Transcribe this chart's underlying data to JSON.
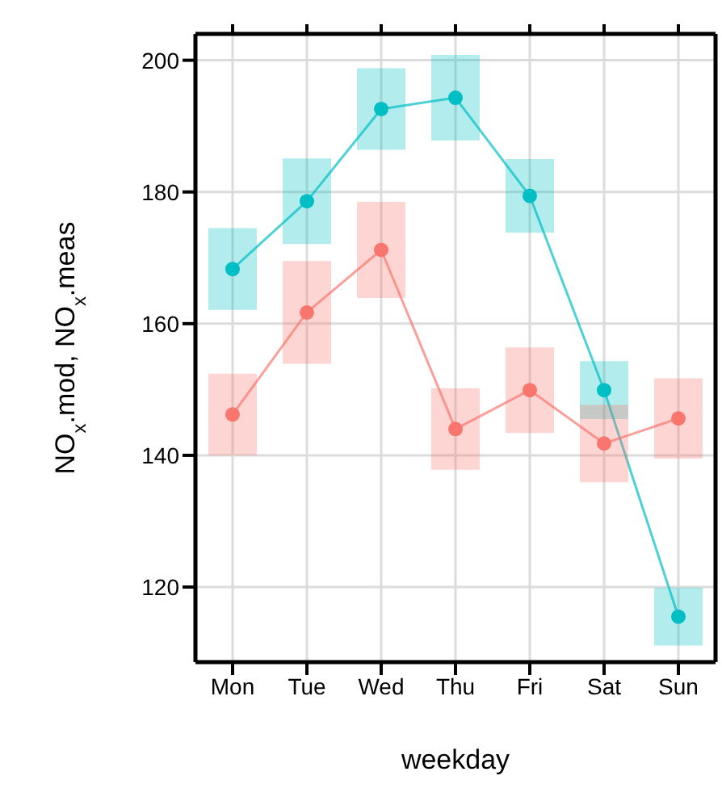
{
  "chart_data": {
    "type": "line",
    "xlabel": "weekday",
    "ylabel": "NO$_{x}$.mod, NO$_{x}$.meas",
    "categories": [
      "Mon",
      "Tue",
      "Wed",
      "Thu",
      "Fri",
      "Sat",
      "Sun"
    ],
    "series": [
      {
        "color": "#00bfc4",
        "values": [
          168.3,
          178.6,
          192.6,
          194.3,
          179.4,
          149.9,
          115.5
        ],
        "errors": [
          6.2,
          6.5,
          6.2,
          6.5,
          5.6,
          4.4,
          4.4
        ]
      },
      {
        "color": "#f8766d",
        "values": [
          146.2,
          161.7,
          171.2,
          144.0,
          149.9,
          141.8,
          145.6
        ],
        "errors": [
          6.2,
          7.8,
          7.3,
          6.2,
          6.5,
          5.9,
          6.1
        ]
      }
    ],
    "ylim": [
      108.6,
      204
    ],
    "yticks": [
      120,
      140,
      160,
      180,
      200
    ],
    "grid": true,
    "marker": "circle"
  }
}
